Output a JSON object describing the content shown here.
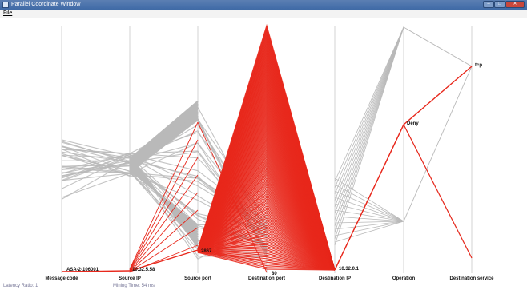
{
  "window": {
    "title": "Parallel Coordinate Window",
    "controls": {
      "minimize": "–",
      "maximize": "□",
      "close": "✕"
    }
  },
  "menu": {
    "items": [
      "File"
    ]
  },
  "axes": [
    "Message code",
    "Source IP",
    "Source port",
    "Destination port",
    "Destination IP",
    "Operation",
    "Destination service"
  ],
  "value_labels": {
    "message_code": "ASA-2-106001",
    "source_ip": "10.32.5.58",
    "source_port": "2867",
    "destination_port": "80",
    "destination_ip": "10.32.0.1",
    "operation": "Deny",
    "destination_service": "tcp"
  },
  "status": {
    "left": "Latency Ratio: 1",
    "middle": "Mining Time: 54 ms"
  },
  "colors": {
    "highlight": "#e8281c",
    "background_lines": "#b9b9b9",
    "axis": "#c8c8c8"
  }
}
